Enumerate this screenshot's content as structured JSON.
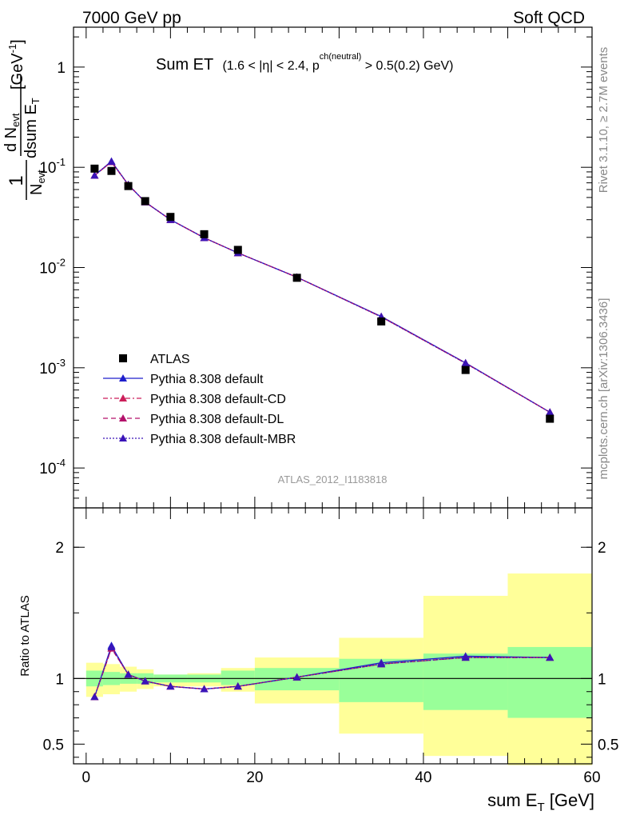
{
  "header": {
    "left": "7000 GeV pp",
    "right": "Soft QCD"
  },
  "side_labels": {
    "rivet": "Rivet 3.1.10, ≥ 2.7M events",
    "mcplots": "mcplots.cern.ch [arXiv:1306.3436]"
  },
  "main_title": {
    "main": "Sum ET",
    "cut_a": "(1.6 < |",
    "eta": "η",
    "cut_b": "| < 2.4, p",
    "sup": "ch(neutral)",
    "cut_c": " > 0.5(0.2) GeV)"
  },
  "analysis_id": "ATLAS_2012_I1183818",
  "y_label_top": {
    "one": "1",
    "nevt": "N",
    "nevt_sub": "evt",
    "dn": "d N",
    "dn_sub": "evt",
    "dsum": "dsum E",
    "dsum_sub": "T",
    "unit": "[GeV",
    "unit_sup": "-1",
    "unit_end": "]"
  },
  "y_label_ratio": "Ratio to ATLAS",
  "x_label": {
    "main": "sum E",
    "sub": "T",
    "unit": " [GeV]"
  },
  "colors": {
    "atlas": "#000000",
    "default": "#1f1fcc",
    "cd": "#cc1f5a",
    "dl": "#b3126b",
    "mbr": "#3a14b8",
    "band_inner": "#99ff99",
    "band_outer": "#ffff99"
  },
  "chart_data": [
    {
      "type": "scatter",
      "panel": "main",
      "y_scale": "log",
      "ylim": [
        4e-05,
        2.5
      ],
      "xlim": [
        -1.5,
        60
      ],
      "y_tick_labels": [
        "1",
        "10^-1",
        "10^-2",
        "10^-3",
        "10^-4"
      ],
      "x": [
        1,
        3,
        5,
        7,
        10,
        14,
        18,
        25,
        35,
        45,
        55
      ],
      "series": [
        {
          "name": "ATLAS",
          "style": "marker",
          "values": [
            0.097,
            0.092,
            0.065,
            0.046,
            0.032,
            0.0215,
            0.015,
            0.0079,
            0.0029,
            0.00095,
            0.00031
          ]
        },
        {
          "name": "Pythia 8.308 default",
          "style": "solid",
          "values": [
            0.083,
            0.115,
            0.067,
            0.045,
            0.03,
            0.0198,
            0.014,
            0.008,
            0.00325,
            0.00112,
            0.00036
          ]
        },
        {
          "name": "Pythia 8.308 default-CD",
          "style": "dashdot",
          "values": [
            0.083,
            0.113,
            0.067,
            0.045,
            0.03,
            0.0198,
            0.014,
            0.008,
            0.00322,
            0.00111,
            0.00036
          ]
        },
        {
          "name": "Pythia 8.308 default-DL",
          "style": "dashed",
          "values": [
            0.083,
            0.113,
            0.067,
            0.045,
            0.03,
            0.0198,
            0.014,
            0.008,
            0.00322,
            0.00111,
            0.00036
          ]
        },
        {
          "name": "Pythia 8.308 default-MBR",
          "style": "dotted",
          "values": [
            0.083,
            0.114,
            0.067,
            0.045,
            0.03,
            0.0198,
            0.014,
            0.008,
            0.00322,
            0.00111,
            0.00036
          ]
        }
      ],
      "legend": "bottom-left"
    },
    {
      "type": "line",
      "panel": "ratio",
      "ylim": [
        0.35,
        2.3
      ],
      "xlim": [
        -1.5,
        60
      ],
      "y_ticks": [
        0.5,
        1,
        2
      ],
      "y_tick_labels": [
        "0.5",
        "1",
        "2"
      ],
      "x_ticks": [
        0,
        20,
        40,
        60
      ],
      "x_tick_labels": [
        "0",
        "20",
        "40",
        "60"
      ],
      "reference_line": 1,
      "bins": [
        [
          0,
          2
        ],
        [
          2,
          4
        ],
        [
          4,
          6
        ],
        [
          6,
          8
        ],
        [
          8,
          12
        ],
        [
          12,
          16
        ],
        [
          16,
          20
        ],
        [
          20,
          30
        ],
        [
          30,
          40
        ],
        [
          40,
          50
        ],
        [
          50,
          60
        ]
      ],
      "band_inner": [
        [
          0.94,
          1.06
        ],
        [
          0.95,
          1.05
        ],
        [
          0.96,
          1.04
        ],
        [
          0.96,
          1.04
        ],
        [
          0.97,
          1.03
        ],
        [
          0.97,
          1.03
        ],
        [
          0.95,
          1.06
        ],
        [
          0.91,
          1.08
        ],
        [
          0.82,
          1.15
        ],
        [
          0.76,
          1.19
        ],
        [
          0.7,
          1.24
        ]
      ],
      "band_outer": [
        [
          0.86,
          1.12
        ],
        [
          0.88,
          1.11
        ],
        [
          0.9,
          1.09
        ],
        [
          0.92,
          1.07
        ],
        [
          0.94,
          1.03
        ],
        [
          0.94,
          1.04
        ],
        [
          0.9,
          1.08
        ],
        [
          0.81,
          1.16
        ],
        [
          0.58,
          1.31
        ],
        [
          0.41,
          1.63
        ],
        [
          0.34,
          1.8
        ]
      ],
      "x": [
        1,
        3,
        5,
        7,
        10,
        14,
        18,
        25,
        35,
        45,
        55
      ],
      "series": [
        {
          "name": "Pythia 8.308 default",
          "values": [
            0.86,
            1.25,
            1.03,
            0.98,
            0.94,
            0.92,
            0.94,
            1.01,
            1.12,
            1.17,
            1.16
          ]
        },
        {
          "name": "Pythia 8.308 default-CD",
          "values": [
            0.86,
            1.23,
            1.03,
            0.98,
            0.94,
            0.92,
            0.94,
            1.01,
            1.11,
            1.16,
            1.16
          ]
        },
        {
          "name": "Pythia 8.308 default-DL",
          "values": [
            0.86,
            1.23,
            1.03,
            0.98,
            0.94,
            0.92,
            0.94,
            1.01,
            1.11,
            1.16,
            1.16
          ]
        },
        {
          "name": "Pythia 8.308 default-MBR",
          "values": [
            0.86,
            1.24,
            1.03,
            0.98,
            0.94,
            0.92,
            0.94,
            1.01,
            1.11,
            1.16,
            1.16
          ]
        }
      ]
    }
  ]
}
